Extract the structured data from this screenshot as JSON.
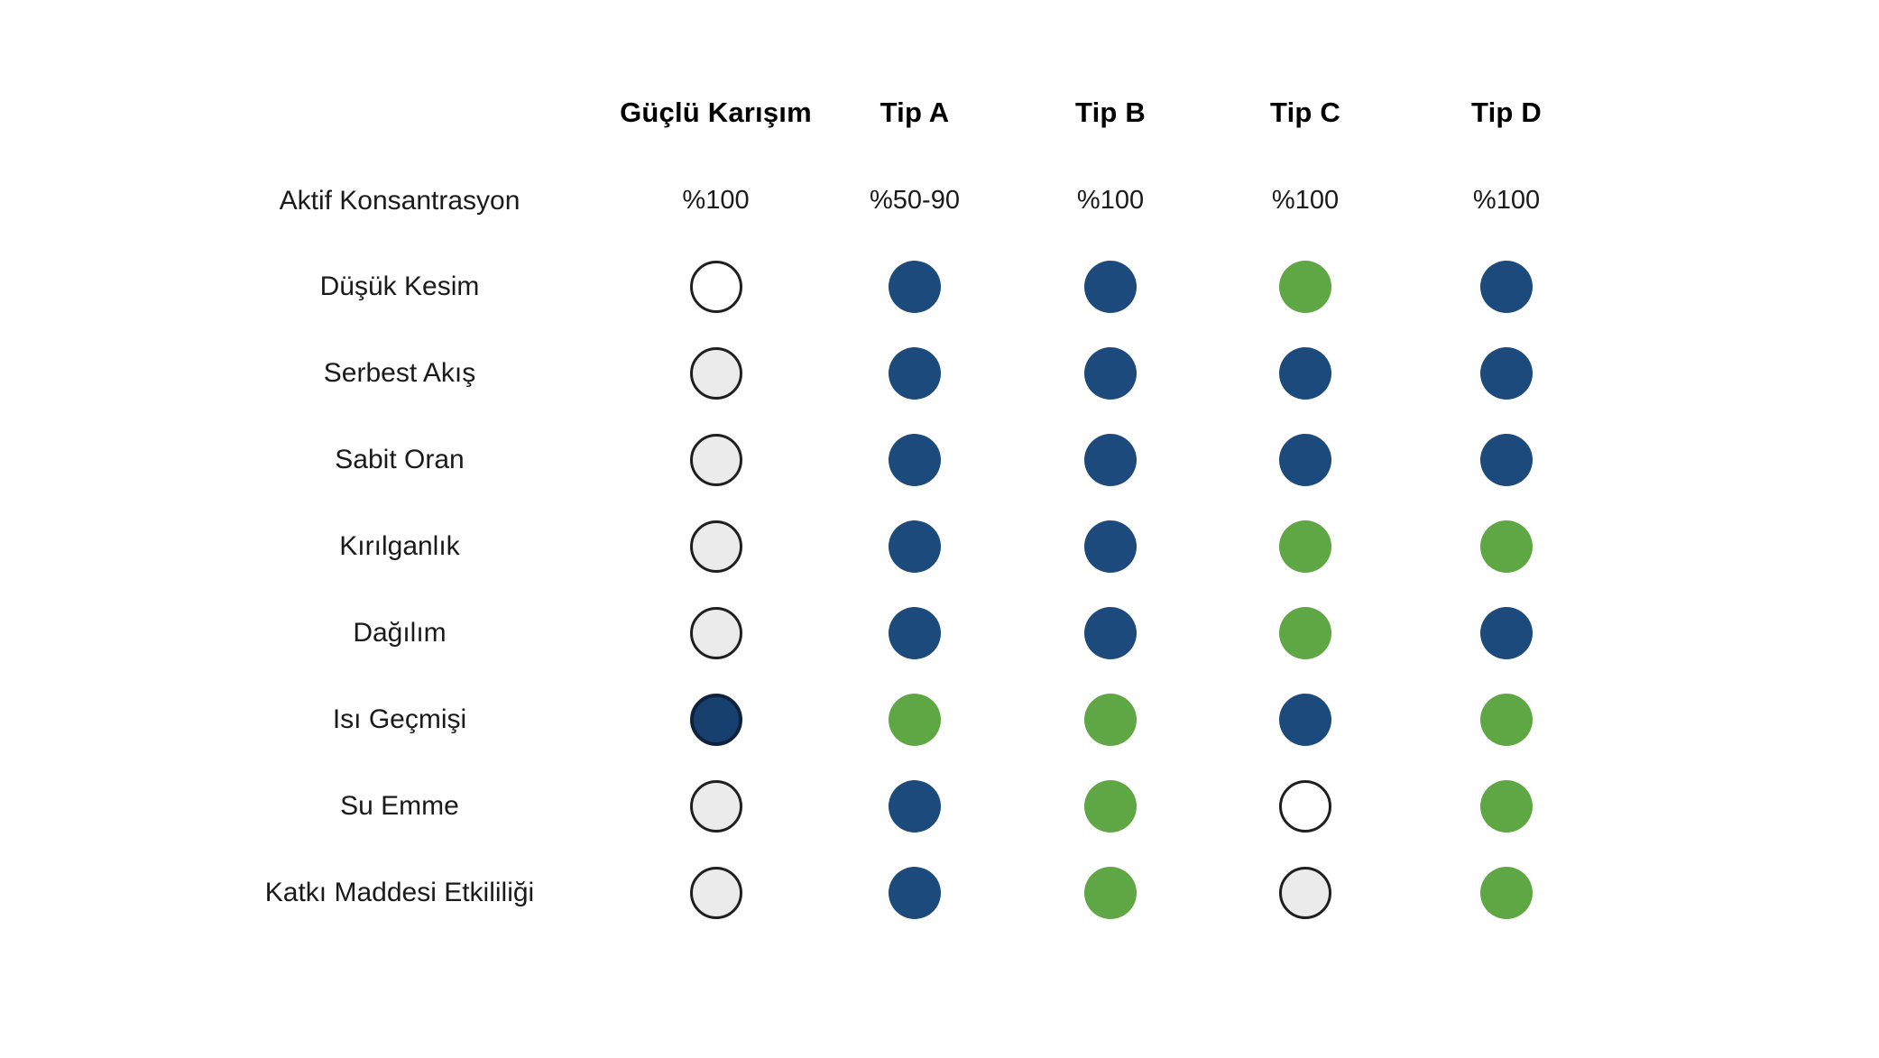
{
  "palette": {
    "blue": "#1C4A7C",
    "green": "#5FA644",
    "gray": "#EBEBEB",
    "white": "#FFFFFF",
    "navy_fill": "#17406F",
    "navy_border": "#0E2240",
    "outline": "#1F1F1F"
  },
  "matrix": {
    "columns": [
      "Güçlü Karışım",
      "Tip A",
      "Tip B",
      "Tip C",
      "Tip D"
    ],
    "concentration": {
      "label": "Aktif Konsantrasyon",
      "values": [
        "%100",
        "%50-90",
        "%100",
        "%100",
        "%100"
      ]
    },
    "rows": [
      {
        "label": "Düşük Kesim",
        "cells": [
          "white",
          "blue",
          "blue",
          "green",
          "blue"
        ]
      },
      {
        "label": "Serbest Akış",
        "cells": [
          "gray",
          "blue",
          "blue",
          "blue",
          "blue"
        ]
      },
      {
        "label": "Sabit Oran",
        "cells": [
          "gray",
          "blue",
          "blue",
          "blue",
          "blue"
        ]
      },
      {
        "label": "Kırılganlık",
        "cells": [
          "gray",
          "blue",
          "blue",
          "green",
          "green"
        ]
      },
      {
        "label": "Dağılım",
        "cells": [
          "gray",
          "blue",
          "blue",
          "green",
          "blue"
        ]
      },
      {
        "label": "Isı Geçmişi",
        "cells": [
          "navy",
          "green",
          "green",
          "blue",
          "green"
        ]
      },
      {
        "label": "Su Emme",
        "cells": [
          "gray",
          "blue",
          "green",
          "white",
          "green"
        ]
      },
      {
        "label": "Katkı Maddesi Etkililiği",
        "cells": [
          "gray",
          "blue",
          "green",
          "gray",
          "green"
        ]
      }
    ]
  },
  "chart_data": {
    "type": "table",
    "title": "",
    "columns": [
      "Güçlü Karışım",
      "Tip A",
      "Tip B",
      "Tip C",
      "Tip D"
    ],
    "rows": [
      {
        "label": "Aktif Konsantrasyon",
        "values": [
          "%100",
          "%50-90",
          "%100",
          "%100",
          "%100"
        ]
      },
      {
        "label": "Düşük Kesim",
        "values": [
          "white",
          "blue",
          "blue",
          "green",
          "blue"
        ]
      },
      {
        "label": "Serbest Akış",
        "values": [
          "gray",
          "blue",
          "blue",
          "blue",
          "blue"
        ]
      },
      {
        "label": "Sabit Oran",
        "values": [
          "gray",
          "blue",
          "blue",
          "blue",
          "blue"
        ]
      },
      {
        "label": "Kırılganlık",
        "values": [
          "gray",
          "blue",
          "blue",
          "green",
          "green"
        ]
      },
      {
        "label": "Dağılım",
        "values": [
          "gray",
          "blue",
          "blue",
          "green",
          "blue"
        ]
      },
      {
        "label": "Isı Geçmişi",
        "values": [
          "navy",
          "green",
          "green",
          "blue",
          "green"
        ]
      },
      {
        "label": "Su Emme",
        "values": [
          "gray",
          "blue",
          "green",
          "white",
          "green"
        ]
      },
      {
        "label": "Katkı Maddesi Etkililiği",
        "values": [
          "gray",
          "blue",
          "green",
          "gray",
          "green"
        ]
      }
    ],
    "legend_position": "none",
    "grid": false,
    "cell_colors": {
      "blue": "#1C4A7C",
      "green": "#5FA644",
      "gray": "#EBEBEB",
      "white": "#FFFFFF",
      "navy": "#17406F"
    }
  }
}
